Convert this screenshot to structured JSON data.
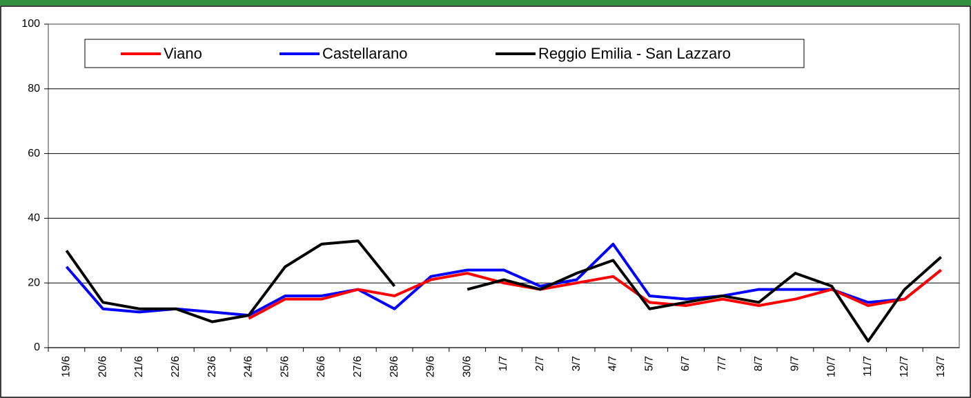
{
  "chart_data": {
    "type": "line",
    "categories": [
      "19/6",
      "20/6",
      "21/6",
      "22/6",
      "23/6",
      "24/6",
      "25/6",
      "26/6",
      "27/6",
      "28/6",
      "29/6",
      "30/6",
      "1/7",
      "2/7",
      "3/7",
      "4/7",
      "5/7",
      "6/7",
      "7/7",
      "8/7",
      "9/7",
      "10/7",
      "11/7",
      "12/7",
      "13/7"
    ],
    "series": [
      {
        "name": "Viano",
        "color": "#ff0000",
        "values": [
          null,
          null,
          null,
          null,
          null,
          9,
          15,
          15,
          18,
          16,
          21,
          23,
          20,
          18,
          20,
          22,
          14,
          13,
          15,
          13,
          15,
          18,
          13,
          15,
          24
        ]
      },
      {
        "name": "Castellarano",
        "color": "#0000ff",
        "values": [
          25,
          12,
          11,
          12,
          11,
          10,
          16,
          16,
          18,
          12,
          22,
          24,
          24,
          19,
          21,
          32,
          16,
          15,
          16,
          18,
          18,
          18,
          14,
          15,
          24
        ]
      },
      {
        "name": "Reggio Emilia - San Lazzaro",
        "color": "#000000",
        "values": [
          30,
          14,
          12,
          12,
          8,
          10,
          25,
          32,
          33,
          19,
          null,
          18,
          21,
          18,
          23,
          27,
          12,
          14,
          16,
          14,
          23,
          19,
          2,
          18,
          28
        ]
      }
    ],
    "ylim": [
      0,
      100
    ],
    "yticks": [
      0,
      20,
      40,
      60,
      80,
      100
    ],
    "grid": true
  }
}
